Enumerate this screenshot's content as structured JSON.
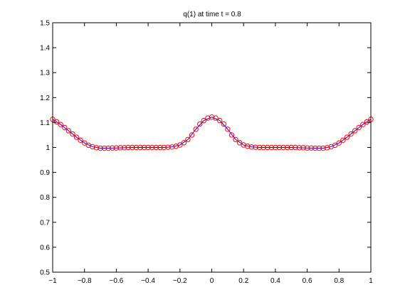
{
  "chart_data": {
    "type": "line",
    "title": "q(1)   at time t = 0.8",
    "xlabel": "",
    "ylabel": "",
    "xlim": [
      -1,
      1
    ],
    "ylim": [
      0.5,
      1.5
    ],
    "xticks": [
      "−1",
      "−0.8",
      "−0.6",
      "−0.4",
      "−0.2",
      "0",
      "0.2",
      "0.4",
      "0.6",
      "0.8",
      "1"
    ],
    "xtick_values": [
      -1,
      -0.8,
      -0.6,
      -0.4,
      -0.2,
      0,
      0.2,
      0.4,
      0.6,
      0.8,
      1
    ],
    "yticks": [
      "0.5",
      "0.6",
      "0.7",
      "0.8",
      "0.9",
      "1",
      "1.1",
      "1.2",
      "1.3",
      "1.4",
      "1.5"
    ],
    "ytick_values": [
      0.5,
      0.6,
      0.7,
      0.8,
      0.9,
      1.0,
      1.1,
      1.2,
      1.3,
      1.4,
      1.5
    ],
    "grid": false,
    "legend": "none",
    "series": [
      {
        "style": "line",
        "color": "#0000ff",
        "x": [
          -1.0,
          -0.95,
          -0.9,
          -0.85,
          -0.8,
          -0.75,
          -0.7,
          -0.65,
          -0.6,
          -0.55,
          -0.5,
          -0.45,
          -0.4,
          -0.35,
          -0.3,
          -0.25,
          -0.2,
          -0.15,
          -0.1,
          -0.05,
          0.0,
          0.05,
          0.1,
          0.15,
          0.2,
          0.25,
          0.3,
          0.35,
          0.4,
          0.45,
          0.5,
          0.55,
          0.6,
          0.65,
          0.7,
          0.75,
          0.8,
          0.85,
          0.9,
          0.95,
          1.0
        ],
        "y": [
          1.113,
          1.092,
          1.067,
          1.041,
          1.018,
          1.003,
          0.997,
          0.997,
          0.998,
          0.999,
          1.0,
          1.0,
          1.0,
          1.0,
          1.0,
          1.002,
          1.01,
          1.032,
          1.073,
          1.108,
          1.122,
          1.108,
          1.073,
          1.032,
          1.01,
          1.002,
          1.0,
          1.0,
          1.0,
          1.0,
          1.0,
          0.999,
          0.998,
          0.997,
          0.997,
          1.003,
          1.018,
          1.041,
          1.067,
          1.092,
          1.113
        ]
      },
      {
        "style": "markers",
        "marker": "circle",
        "color": "#ff0000",
        "x": [
          -1.0,
          -0.975,
          -0.95,
          -0.925,
          -0.9,
          -0.875,
          -0.85,
          -0.825,
          -0.8,
          -0.775,
          -0.75,
          -0.725,
          -0.7,
          -0.675,
          -0.65,
          -0.625,
          -0.6,
          -0.575,
          -0.55,
          -0.525,
          -0.5,
          -0.475,
          -0.45,
          -0.425,
          -0.4,
          -0.375,
          -0.35,
          -0.325,
          -0.3,
          -0.275,
          -0.25,
          -0.225,
          -0.2,
          -0.175,
          -0.15,
          -0.125,
          -0.1,
          -0.075,
          -0.05,
          -0.025,
          0.0,
          0.025,
          0.05,
          0.075,
          0.1,
          0.125,
          0.15,
          0.175,
          0.2,
          0.225,
          0.25,
          0.275,
          0.3,
          0.325,
          0.35,
          0.375,
          0.4,
          0.425,
          0.45,
          0.475,
          0.5,
          0.525,
          0.55,
          0.575,
          0.6,
          0.625,
          0.65,
          0.675,
          0.7,
          0.725,
          0.75,
          0.775,
          0.8,
          0.825,
          0.85,
          0.875,
          0.9,
          0.925,
          0.95,
          0.975,
          1.0
        ],
        "y": [
          1.113,
          1.103,
          1.092,
          1.08,
          1.067,
          1.054,
          1.041,
          1.029,
          1.018,
          1.009,
          1.003,
          0.999,
          0.997,
          0.997,
          0.997,
          0.998,
          0.998,
          0.999,
          0.999,
          1.0,
          1.0,
          1.0,
          1.0,
          1.0,
          1.0,
          1.0,
          1.0,
          1.0,
          1.0,
          1.001,
          1.002,
          1.005,
          1.01,
          1.019,
          1.032,
          1.05,
          1.073,
          1.094,
          1.108,
          1.118,
          1.122,
          1.118,
          1.108,
          1.094,
          1.073,
          1.05,
          1.032,
          1.019,
          1.01,
          1.005,
          1.002,
          1.001,
          1.0,
          1.0,
          1.0,
          1.0,
          1.0,
          1.0,
          1.0,
          1.0,
          1.0,
          1.0,
          0.999,
          0.999,
          0.998,
          0.998,
          0.997,
          0.997,
          0.997,
          0.999,
          1.003,
          1.009,
          1.018,
          1.029,
          1.041,
          1.054,
          1.067,
          1.08,
          1.092,
          1.103,
          1.113
        ]
      }
    ]
  }
}
